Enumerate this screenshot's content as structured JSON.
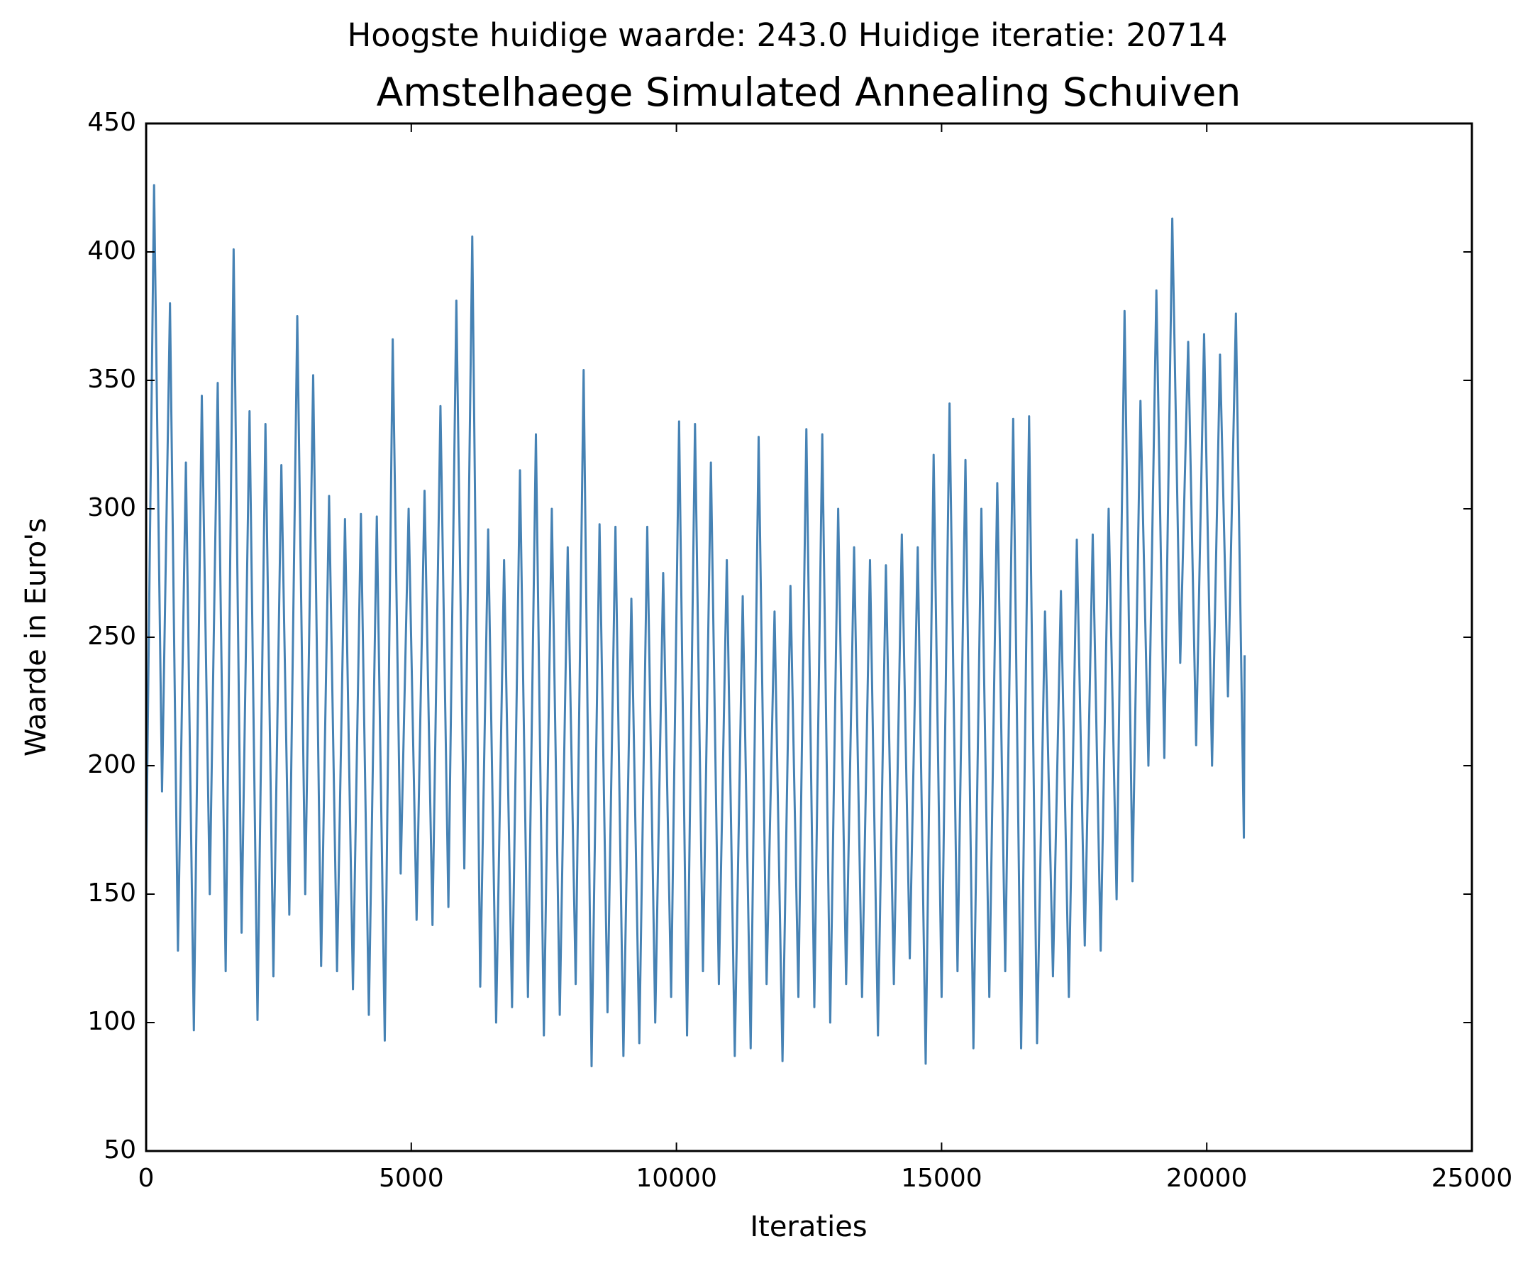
{
  "chart_data": {
    "type": "line",
    "suptitle": "Hoogste huidige waarde: 243.0 Huidige iteratie: 20714",
    "title": "Amstelhaege Simulated Annealing Schuiven",
    "x_label": "Iteraties",
    "y_label": "Waarde in Euro's",
    "xlim": [
      0,
      25000
    ],
    "xticks": [
      0,
      5000,
      10000,
      15000,
      20000,
      25000
    ],
    "ylim": [
      50,
      450
    ],
    "yticks": [
      50,
      100,
      150,
      200,
      250,
      300,
      350,
      400,
      450
    ],
    "color": "#4682b4",
    "x": [
      0,
      150,
      300,
      450,
      600,
      750,
      900,
      1050,
      1200,
      1350,
      1500,
      1650,
      1800,
      1950,
      2100,
      2250,
      2400,
      2550,
      2700,
      2850,
      3000,
      3150,
      3300,
      3450,
      3600,
      3750,
      3900,
      4050,
      4200,
      4350,
      4500,
      4650,
      4800,
      4950,
      5100,
      5250,
      5400,
      5550,
      5700,
      5850,
      6000,
      6150,
      6300,
      6450,
      6600,
      6750,
      6900,
      7050,
      7200,
      7350,
      7500,
      7650,
      7800,
      7950,
      8100,
      8250,
      8400,
      8550,
      8700,
      8850,
      9000,
      9150,
      9300,
      9450,
      9600,
      9750,
      9900,
      10050,
      10200,
      10350,
      10500,
      10650,
      10800,
      10950,
      11100,
      11250,
      11400,
      11550,
      11700,
      11850,
      12000,
      12150,
      12300,
      12450,
      12600,
      12750,
      12900,
      13050,
      13200,
      13350,
      13500,
      13650,
      13800,
      13950,
      14100,
      14250,
      14400,
      14550,
      14700,
      14850,
      15000,
      15150,
      15300,
      15450,
      15600,
      15750,
      15900,
      16050,
      16200,
      16350,
      16500,
      16650,
      16800,
      16950,
      17100,
      17250,
      17400,
      17550,
      17700,
      17850,
      18000,
      18150,
      18300,
      18450,
      18600,
      18750,
      18900,
      19050,
      19200,
      19350,
      19500,
      19650,
      19800,
      19950,
      20100,
      20250,
      20400,
      20550,
      20700,
      20714
    ],
    "values": [
      160,
      426,
      190,
      380,
      128,
      318,
      97,
      344,
      150,
      349,
      120,
      401,
      135,
      338,
      101,
      333,
      118,
      317,
      142,
      375,
      150,
      352,
      122,
      305,
      120,
      296,
      113,
      298,
      103,
      297,
      93,
      366,
      158,
      300,
      140,
      307,
      138,
      340,
      145,
      381,
      160,
      406,
      114,
      292,
      100,
      280,
      106,
      315,
      110,
      329,
      95,
      300,
      103,
      285,
      115,
      354,
      83,
      294,
      104,
      293,
      87,
      265,
      92,
      293,
      100,
      275,
      110,
      334,
      95,
      333,
      120,
      318,
      115,
      280,
      87,
      266,
      90,
      328,
      115,
      260,
      85,
      270,
      110,
      331,
      106,
      329,
      100,
      300,
      115,
      285,
      110,
      280,
      95,
      278,
      115,
      290,
      125,
      285,
      84,
      321,
      110,
      341,
      120,
      319,
      90,
      300,
      110,
      310,
      120,
      335,
      90,
      336,
      92,
      260,
      118,
      268,
      110,
      288,
      130,
      290,
      128,
      300,
      148,
      377,
      155,
      342,
      200,
      385,
      203,
      413,
      240,
      365,
      208,
      368,
      200,
      360,
      227,
      376,
      172,
      243
    ]
  }
}
